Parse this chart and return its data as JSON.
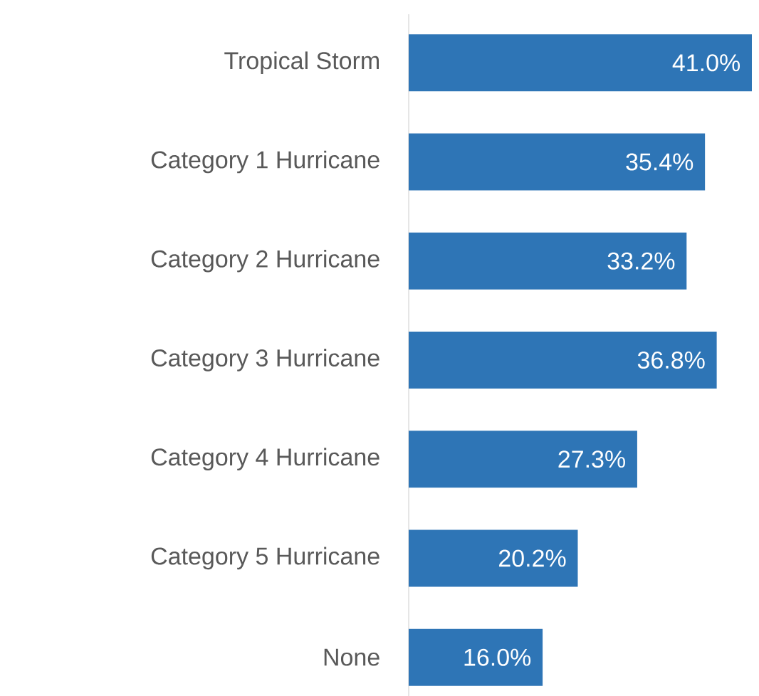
{
  "chart_data": {
    "type": "bar",
    "orientation": "horizontal",
    "categories": [
      "Tropical Storm",
      "Category 1 Hurricane",
      "Category 2 Hurricane",
      "Category 3 Hurricane",
      "Category 4 Hurricane",
      "Category 5 Hurricane",
      "None"
    ],
    "values": [
      41.0,
      35.4,
      33.2,
      36.8,
      27.3,
      20.2,
      16.0
    ],
    "value_labels": [
      "41.0%",
      "35.4%",
      "33.2%",
      "36.8%",
      "27.3%",
      "20.2%",
      "16.0%"
    ],
    "color": "#2e75b6"
  }
}
